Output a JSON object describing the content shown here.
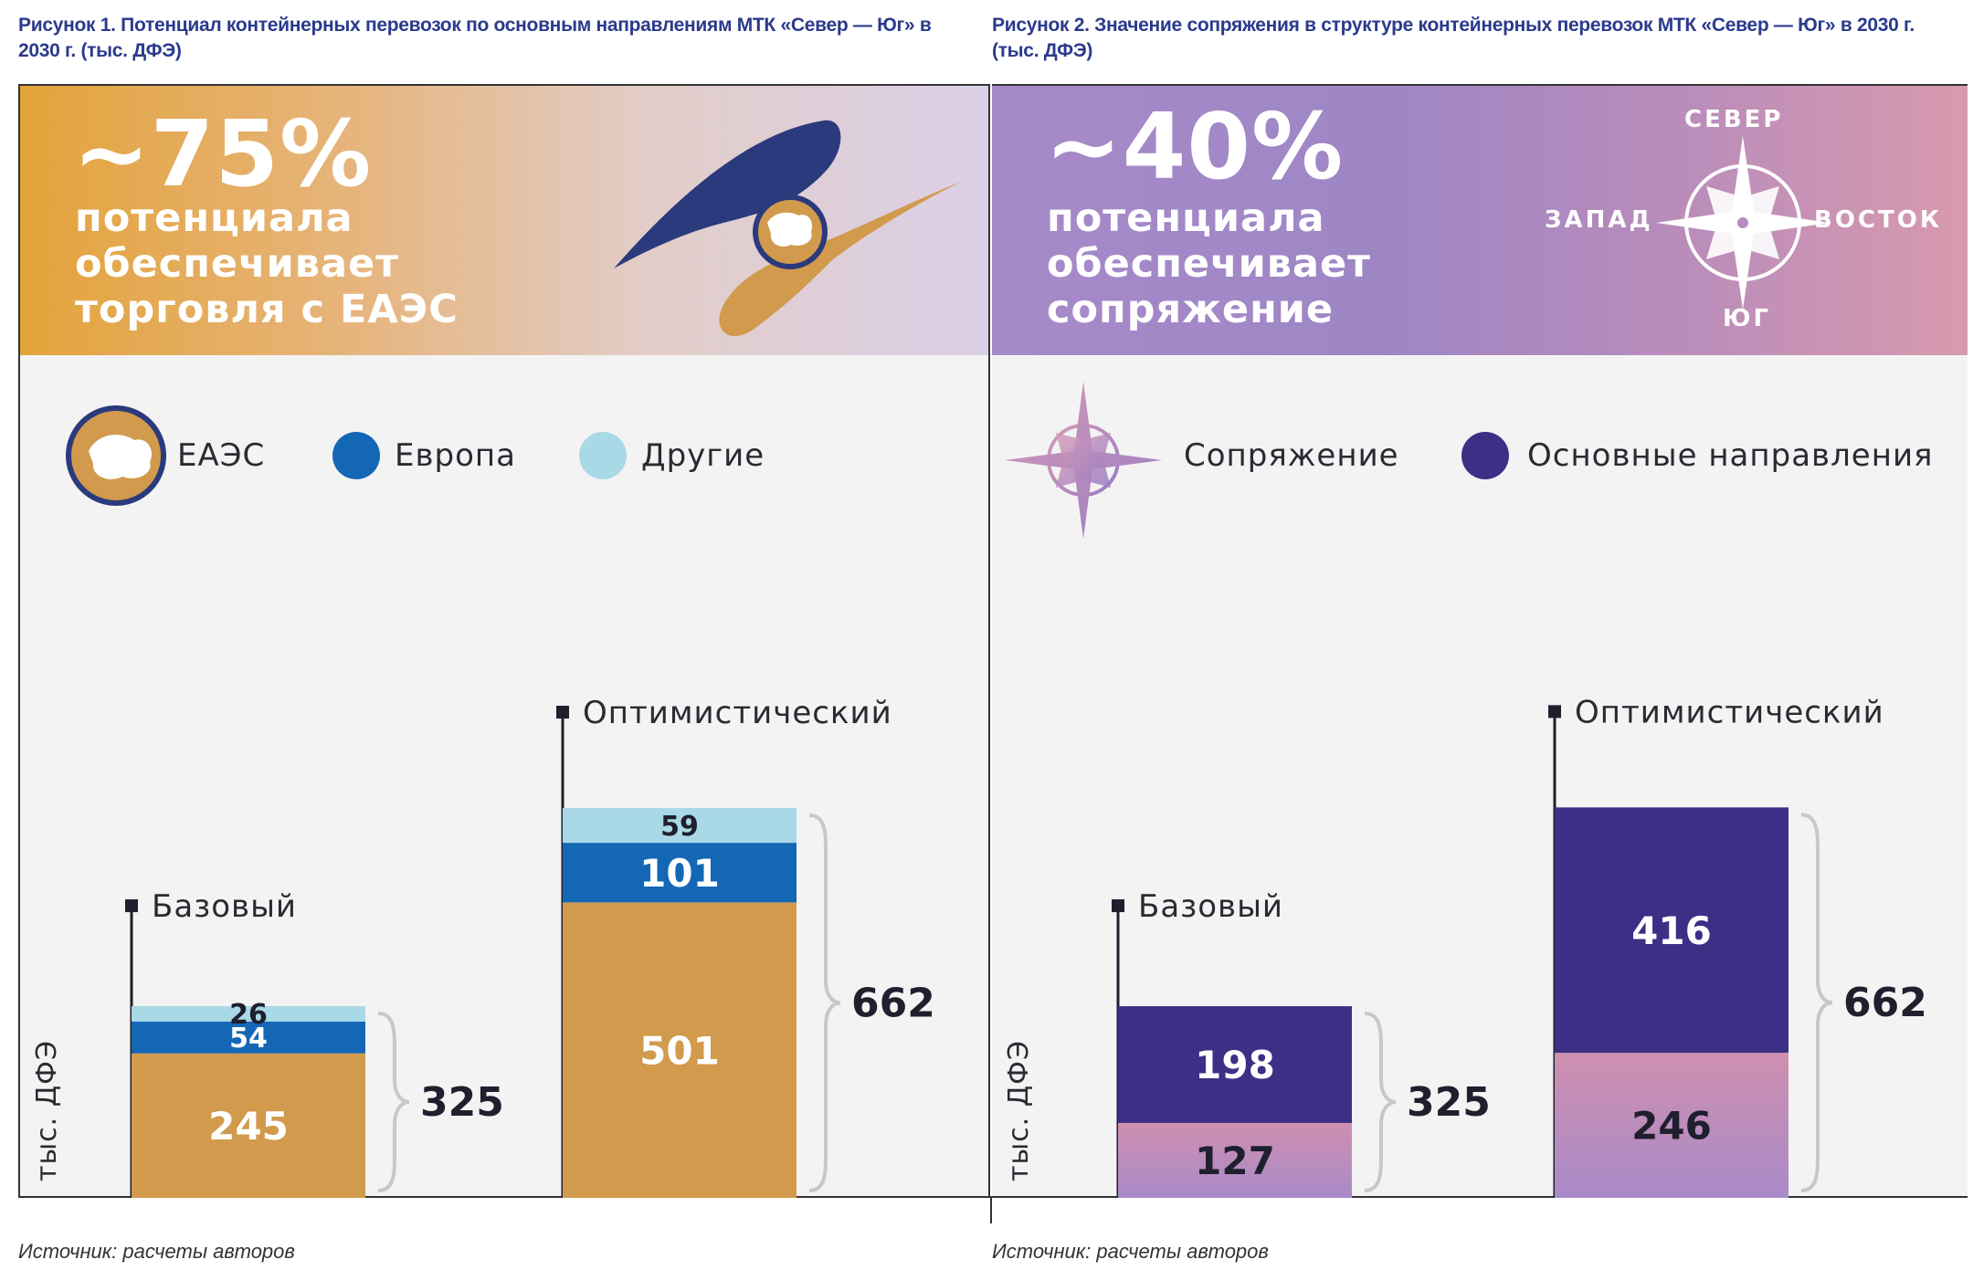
{
  "captions": {
    "left": "Рисунок 1. Потенциал контейнерных перевозок по основным направлениям МТК «Север — Юг» в 2030 г. (тыс. ДФЭ)",
    "right": "Рисунок 2. Значение сопряжения в структуре контейнерных перевозок МТК «Север — Юг» в 2030 г. (тыс. ДФЭ)"
  },
  "source_note": "Источник: расчеты авторов",
  "left_banner": {
    "percent": "~75%",
    "lines": [
      "потенциала",
      "обеспечивает",
      "торговля с ЕАЭС"
    ],
    "logo_icon": "eaeu-logo-icon"
  },
  "right_banner": {
    "percent": "~40%",
    "lines": [
      "потенциала",
      "обеспечивает",
      "сопряжение"
    ],
    "compass_icon": "compass-rose-icon",
    "compass": {
      "north": "СЕВЕР",
      "west": "ЗАПАД",
      "east": "ВОСТОК",
      "south": "ЮГ"
    }
  },
  "legend_left": [
    {
      "label": "ЕАЭС",
      "icon": "eaeu-globe-icon",
      "color": "#d19a4c"
    },
    {
      "label": "Европа",
      "icon": "circle-icon",
      "color": "#1467b5"
    },
    {
      "label": "Другие",
      "icon": "circle-icon",
      "color": "#a9d8e6"
    }
  ],
  "legend_right": [
    {
      "label": "Сопряжение",
      "icon": "compass-star-icon",
      "color": "#b88fc9"
    },
    {
      "label": "Основные направления",
      "icon": "circle-icon",
      "color": "#3b2f86"
    }
  ],
  "chart_data": [
    {
      "type": "bar",
      "stacked": true,
      "categories": [
        "Базовый",
        "Оптимистический"
      ],
      "ylabel": "тыс. ДФЭ",
      "ylim": [
        0,
        790
      ],
      "series": [
        {
          "name": "ЕАЭС",
          "values": [
            245,
            501
          ],
          "color": "#d19a4c"
        },
        {
          "name": "Европа",
          "values": [
            54,
            101
          ],
          "color": "#1467b5"
        },
        {
          "name": "Другие",
          "values": [
            26,
            59
          ],
          "color": "#a9d8e6"
        }
      ],
      "totals": [
        325,
        662
      ]
    },
    {
      "type": "bar",
      "stacked": true,
      "categories": [
        "Базовый",
        "Оптимистический"
      ],
      "ylabel": "тыс. ДФЭ",
      "ylim": [
        0,
        790
      ],
      "series": [
        {
          "name": "Сопряжение",
          "values": [
            127,
            246
          ],
          "color": "#c08fb9"
        },
        {
          "name": "Основные направления",
          "values": [
            198,
            416
          ],
          "color": "#3b2f86"
        }
      ],
      "totals": [
        325,
        662
      ]
    }
  ]
}
